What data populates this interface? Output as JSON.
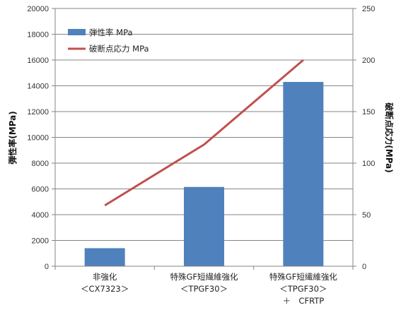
{
  "chart_data": {
    "type": "bar",
    "categories": [
      [
        "非強化",
        "＜CX7323＞"
      ],
      [
        "特殊GF短繊維強化",
        "＜TPGF30＞"
      ],
      [
        "特殊GF短繊維強化",
        "＜TPGF30＞",
        "＋　CFRTP"
      ]
    ],
    "series": [
      {
        "name": "弾性率 MPa",
        "type": "bar",
        "axis": "left",
        "color": "#4F81BD",
        "values": [
          1400,
          6150,
          14300
        ]
      },
      {
        "name": "破断点応力 MPa",
        "type": "line",
        "axis": "right",
        "color": "#C0504D",
        "values": [
          59,
          118,
          200
        ]
      }
    ],
    "y_left": {
      "label": "弾性率(MPa)",
      "range": [
        0,
        20000
      ],
      "ticks": [
        "0",
        "2000",
        "4000",
        "6000",
        "8000",
        "10000",
        "12000",
        "14000",
        "16000",
        "18000",
        "20000"
      ]
    },
    "y_right": {
      "label": "破断点応力(MPa)",
      "range": [
        0,
        250
      ],
      "ticks": [
        "0",
        "50",
        "100",
        "150",
        "200",
        "250"
      ]
    },
    "grid": true,
    "legend": "top-left"
  }
}
